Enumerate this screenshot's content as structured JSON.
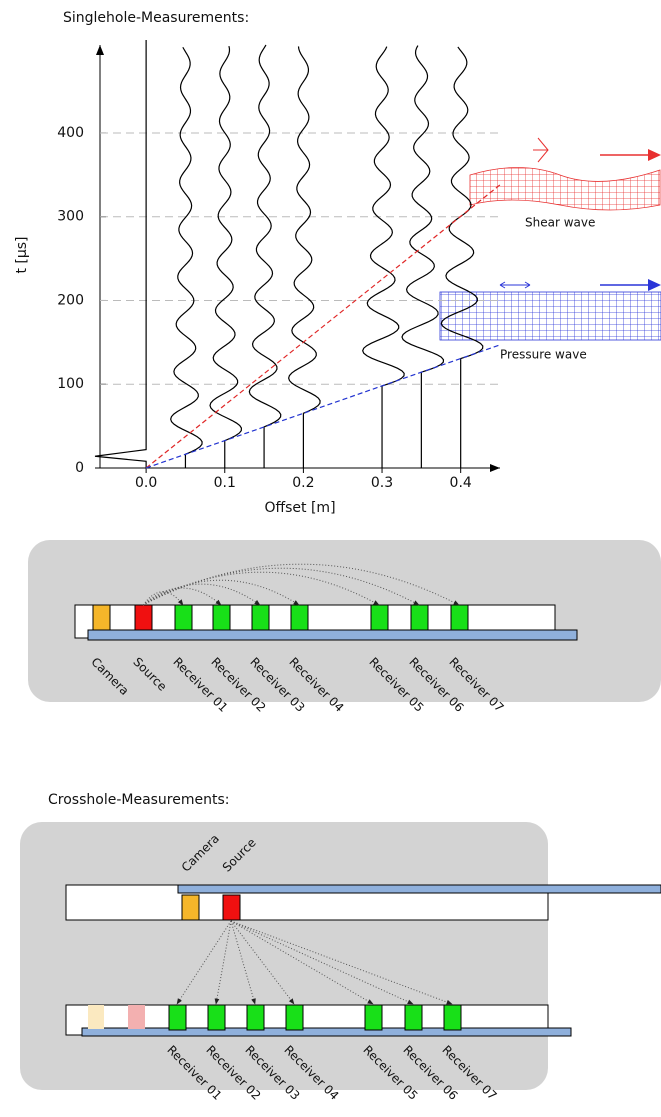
{
  "chart_data": {
    "type": "line",
    "title": "Singlehole-Measurements:",
    "xlabel": "Offset [m]",
    "ylabel": "t [µs]",
    "xlim": [
      -0.065,
      0.45
    ],
    "ylim": [
      0,
      505
    ],
    "xticks": [
      {
        "value": 0,
        "label": "0.0"
      },
      0.1,
      0.2,
      0.3,
      0.4
    ],
    "yticks": [
      0,
      100,
      200,
      300,
      400
    ],
    "grid": true,
    "trace_offsets": [
      0,
      0.05,
      0.1,
      0.15,
      0.2,
      0.3,
      0.35,
      0.4
    ],
    "series": [
      {
        "name": "Shear wave",
        "color": "#e02828",
        "x": [
          0,
          0.45
        ],
        "values": [
          0,
          338
        ]
      },
      {
        "name": "Pressure wave",
        "color": "#2233d0",
        "x": [
          0,
          0.45
        ],
        "values": [
          0,
          147
        ]
      }
    ]
  },
  "singlehole": {
    "labels": [
      "Camera",
      "Source",
      "Receiver 01",
      "Receiver 02",
      "Receiver 03",
      "Receiver 04",
      "Receiver 05",
      "Receiver 06",
      "Receiver 07"
    ]
  },
  "crosshole": {
    "title": "Crosshole-Measurements:",
    "source_labels": [
      "Camera",
      "Source"
    ],
    "receiver_labels": [
      "Receiver 01",
      "Receiver 02",
      "Receiver 03",
      "Receiver 04",
      "Receiver 05",
      "Receiver 06",
      "Receiver 07"
    ]
  }
}
